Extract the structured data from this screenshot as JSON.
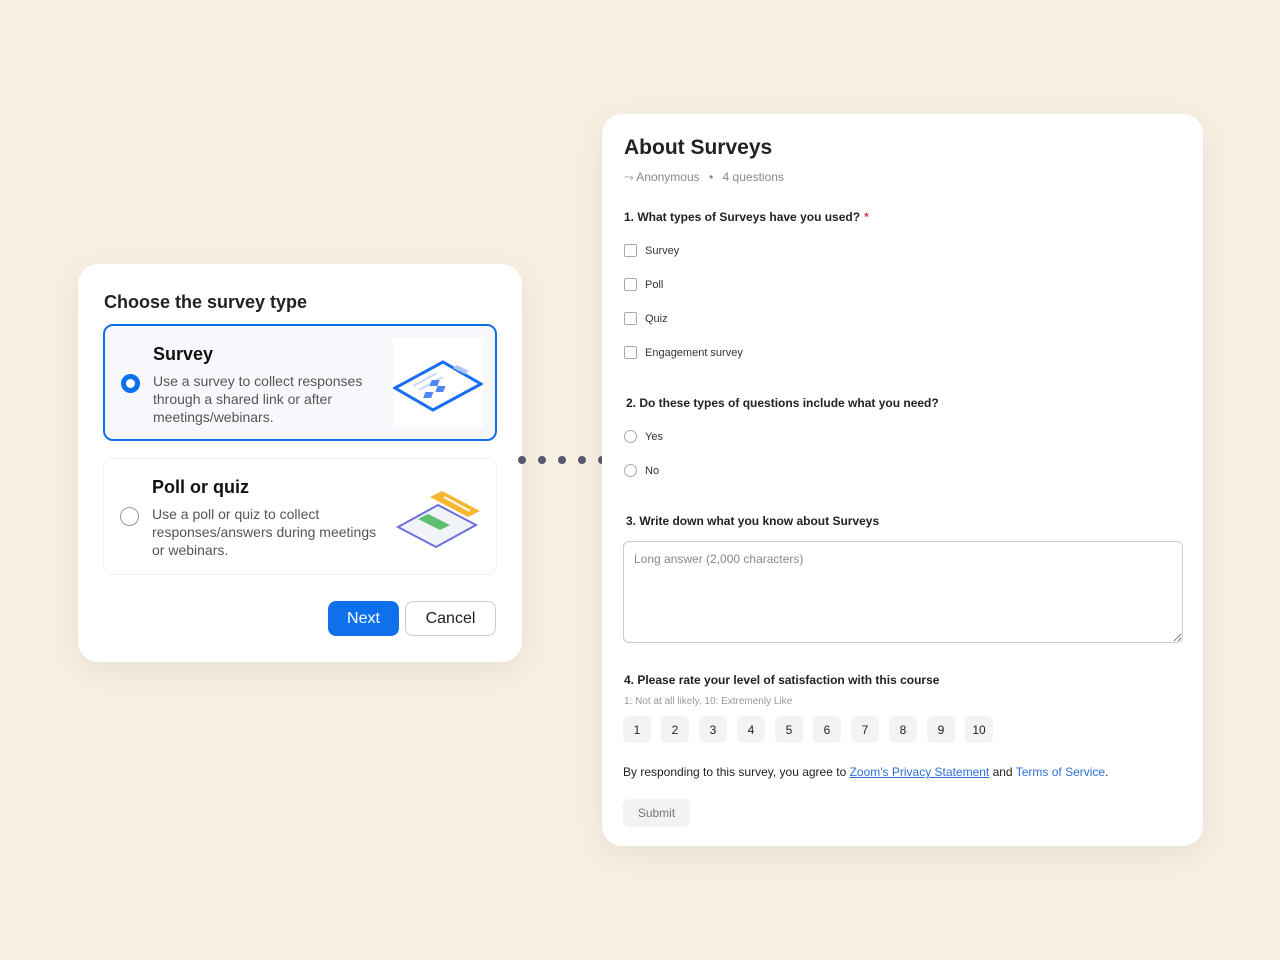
{
  "chooser": {
    "title": "Choose the survey type",
    "options": [
      {
        "title": "Survey",
        "description": "Use a survey to collect responses through a shared link or after meetings/webinars.",
        "selected": true
      },
      {
        "title": "Poll or quiz",
        "description": "Use a poll or quiz to collect responses/answers during meetings or webinars.",
        "selected": false
      }
    ],
    "next_label": "Next",
    "cancel_label": "Cancel",
    "accent": "#0e71eb"
  },
  "survey": {
    "title": "About Surveys",
    "anonymous": "Anonymous",
    "separator": "•",
    "question_count": "4 questions",
    "q1": {
      "label": "1. What types of Surveys have you used?",
      "required": "*",
      "options": [
        "Survey",
        "Poll",
        "Quiz",
        "Engagement survey"
      ]
    },
    "q2": {
      "label": "2. Do these types of questions include what you need?",
      "options": [
        "Yes",
        "No"
      ]
    },
    "q3": {
      "label": "3. Write down what you know about Surveys",
      "placeholder": "Long answer (2,000 characters)"
    },
    "q4": {
      "label": "4. Please rate your level of satisfaction with this course",
      "hint": "1: Not at all likely, 10: Extremenly Like",
      "scale": [
        "1",
        "2",
        "3",
        "4",
        "5",
        "6",
        "7",
        "8",
        "9",
        "10"
      ]
    },
    "agree": {
      "prefix": "By responding to this survey, you agree to ",
      "privacy": "Zoom's Privacy Statement",
      "and": " and ",
      "terms": "Terms of Service",
      "suffix": "."
    },
    "submit_label": "Submit"
  }
}
